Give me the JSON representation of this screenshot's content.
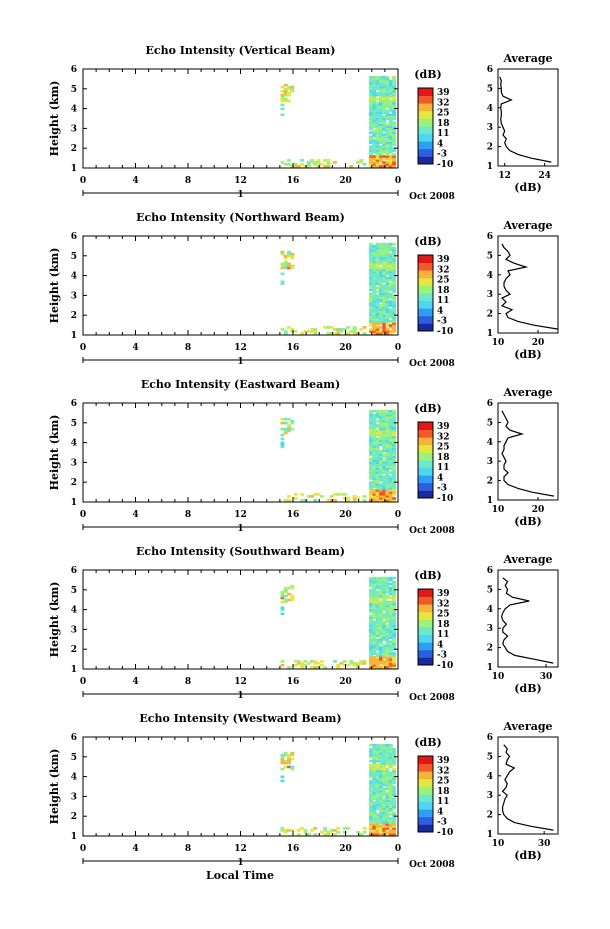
{
  "figure": {
    "shared_xlabel": "Local Time",
    "date_label": "Oct 2008",
    "day_label": "1",
    "colorbar_unit": "(dB)",
    "colorbar_ticks": [
      "39",
      "32",
      "25",
      "18",
      "11",
      "4",
      "-3",
      "-10"
    ],
    "colorscale": [
      "#1a2a9c",
      "#2f5fe0",
      "#2f9ef2",
      "#4fd6f0",
      "#6fe8c8",
      "#9af27a",
      "#e6e640",
      "#f6b43a",
      "#ef5a28",
      "#e21818"
    ]
  },
  "chart_data": [
    {
      "type": "heatmap",
      "title": "Echo Intensity (Vertical Beam)",
      "xlabel": "Local Time",
      "ylabel": "Height (km)",
      "xlim": [
        0,
        24
      ],
      "ylim": [
        1,
        6
      ],
      "xticks": [
        "0",
        "4",
        "8",
        "12",
        "16",
        "20",
        "0"
      ],
      "yticks": [
        "1",
        "2",
        "3",
        "4",
        "5",
        "6"
      ],
      "zlim": [
        -10,
        39
      ],
      "profile": {
        "title": "Average",
        "xlabel": "(dB)",
        "xlim": [
          10,
          28
        ],
        "xticks": [
          {
            "v": 12,
            "t": "12"
          },
          {
            "v": 24,
            "t": "24"
          }
        ],
        "heights": [
          1.2,
          1.4,
          1.6,
          1.8,
          2.0,
          2.2,
          2.4,
          2.6,
          2.8,
          3.0,
          3.2,
          3.4,
          3.6,
          3.8,
          4.0,
          4.2,
          4.4,
          4.6,
          4.8,
          5.0,
          5.2,
          5.4,
          5.6
        ],
        "values": [
          26,
          20,
          16,
          13.5,
          12.5,
          12,
          12.5,
          11.5,
          12,
          11.5,
          11,
          10.8,
          11,
          11,
          10.8,
          11,
          14,
          11.5,
          11,
          11,
          10.8,
          11,
          10.5
        ]
      }
    },
    {
      "type": "heatmap",
      "title": "Echo Intensity (Northward Beam)",
      "xlabel": "Local Time",
      "ylabel": "Height (km)",
      "xlim": [
        0,
        24
      ],
      "ylim": [
        1,
        6
      ],
      "xticks": [
        "0",
        "4",
        "8",
        "12",
        "16",
        "20",
        "0"
      ],
      "yticks": [
        "1",
        "2",
        "3",
        "4",
        "5",
        "6"
      ],
      "zlim": [
        -10,
        39
      ],
      "profile": {
        "title": "Average",
        "xlabel": "(dB)",
        "xlim": [
          10,
          25
        ],
        "xticks": [
          {
            "v": 10,
            "t": "10"
          },
          {
            "v": 20,
            "t": "20"
          }
        ],
        "heights": [
          1.2,
          1.4,
          1.6,
          1.8,
          2.0,
          2.2,
          2.4,
          2.6,
          2.8,
          3.0,
          3.2,
          3.4,
          3.6,
          3.8,
          4.0,
          4.2,
          4.4,
          4.6,
          4.8,
          5.0,
          5.2,
          5.4,
          5.6
        ],
        "values": [
          25,
          19,
          15,
          12.5,
          12,
          13.5,
          11,
          12,
          11,
          13,
          12,
          11.5,
          11.5,
          12,
          13,
          12.5,
          17,
          14,
          12,
          13,
          12.5,
          11.5,
          11
        ]
      }
    },
    {
      "type": "heatmap",
      "title": "Echo Intensity (Eastward Beam)",
      "xlabel": "Local Time",
      "ylabel": "Height (km)",
      "xlim": [
        0,
        24
      ],
      "ylim": [
        1,
        6
      ],
      "xticks": [
        "0",
        "4",
        "8",
        "12",
        "16",
        "20",
        "0"
      ],
      "yticks": [
        "1",
        "2",
        "3",
        "4",
        "5",
        "6"
      ],
      "zlim": [
        -10,
        39
      ],
      "profile": {
        "title": "Average",
        "xlabel": "(dB)",
        "xlim": [
          10,
          25
        ],
        "xticks": [
          {
            "v": 10,
            "t": "10"
          },
          {
            "v": 20,
            "t": "20"
          }
        ],
        "heights": [
          1.2,
          1.4,
          1.6,
          1.8,
          2.0,
          2.2,
          2.4,
          2.6,
          2.8,
          3.0,
          3.2,
          3.4,
          3.6,
          3.8,
          4.0,
          4.2,
          4.4,
          4.6,
          4.8,
          5.0,
          5.2,
          5.4,
          5.6
        ],
        "values": [
          24,
          18.5,
          15,
          12.5,
          11.5,
          11.5,
          12.5,
          11.5,
          11.5,
          12,
          11.5,
          11,
          11.5,
          11.5,
          12,
          12.5,
          16,
          13,
          12,
          12.5,
          12,
          11.5,
          11
        ]
      }
    },
    {
      "type": "heatmap",
      "title": "Echo Intensity (Southward Beam)",
      "xlabel": "Local Time",
      "ylabel": "Height (km)",
      "xlim": [
        0,
        24
      ],
      "ylim": [
        1,
        6
      ],
      "xticks": [
        "0",
        "4",
        "8",
        "12",
        "16",
        "20",
        "0"
      ],
      "yticks": [
        "1",
        "2",
        "3",
        "4",
        "5",
        "6"
      ],
      "zlim": [
        -10,
        39
      ],
      "profile": {
        "title": "Average",
        "xlabel": "(dB)",
        "xlim": [
          10,
          35
        ],
        "xticks": [
          {
            "v": 10,
            "t": "10"
          },
          {
            "v": 30,
            "t": "30"
          }
        ],
        "heights": [
          1.2,
          1.4,
          1.6,
          1.8,
          2.0,
          2.2,
          2.4,
          2.6,
          2.8,
          3.0,
          3.2,
          3.4,
          3.6,
          3.8,
          4.0,
          4.2,
          4.4,
          4.6,
          4.8,
          5.0,
          5.2,
          5.4,
          5.6
        ],
        "values": [
          33,
          25,
          17,
          14,
          13,
          12,
          12.5,
          14,
          12,
          12,
          13.5,
          12,
          11.5,
          12,
          13,
          15,
          23,
          16,
          13.5,
          14,
          13,
          14,
          12
        ]
      }
    },
    {
      "type": "heatmap",
      "title": "Echo Intensity (Westward Beam)",
      "xlabel": "Local Time",
      "ylabel": "Height (km)",
      "xlim": [
        0,
        24
      ],
      "ylim": [
        1,
        6
      ],
      "xticks": [
        "0",
        "4",
        "8",
        "12",
        "16",
        "20",
        "0"
      ],
      "yticks": [
        "1",
        "2",
        "3",
        "4",
        "5",
        "6"
      ],
      "zlim": [
        -10,
        39
      ],
      "profile": {
        "title": "Average",
        "xlabel": "(dB)",
        "xlim": [
          10,
          36
        ],
        "xticks": [
          {
            "v": 10,
            "t": "10"
          },
          {
            "v": 30,
            "t": "30"
          }
        ],
        "heights": [
          1.2,
          1.4,
          1.6,
          1.8,
          2.0,
          2.2,
          2.4,
          2.6,
          2.8,
          3.0,
          3.2,
          3.4,
          3.6,
          3.8,
          4.0,
          4.2,
          4.4,
          4.6,
          4.8,
          5.0,
          5.2,
          5.4,
          5.6
        ],
        "values": [
          34,
          24,
          17,
          14,
          12.5,
          12,
          12,
          12.5,
          13,
          14,
          12,
          13.5,
          14,
          13,
          14,
          15,
          17,
          13.5,
          14,
          15,
          13.5,
          14,
          12.5
        ]
      }
    }
  ]
}
